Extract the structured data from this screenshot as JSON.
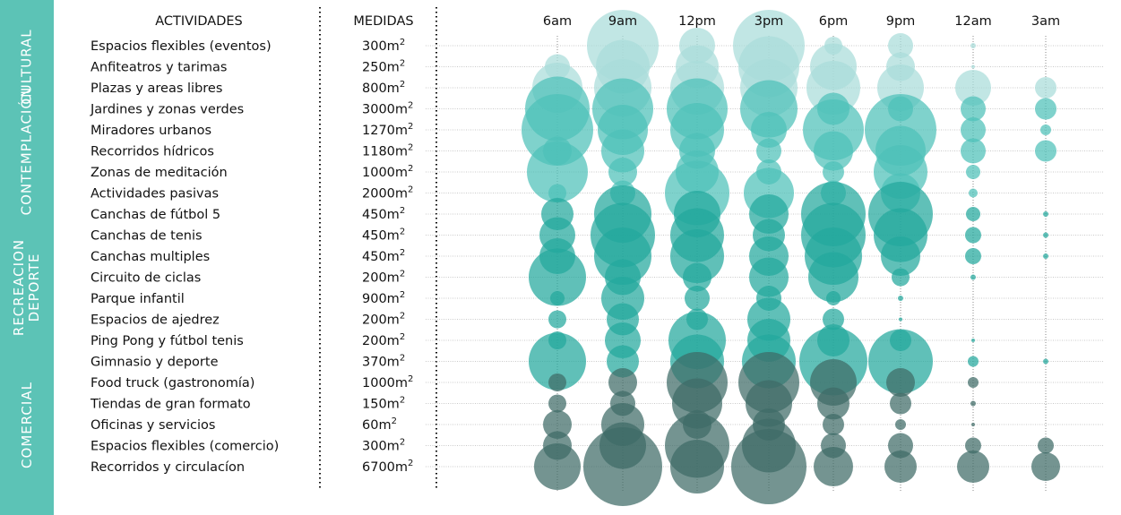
{
  "chart_data": {
    "type": "bubble",
    "headers": {
      "activities": "ACTIVIDADES",
      "measures": "MEDIDAS"
    },
    "times": [
      "6am",
      "9am",
      "12pm",
      "3pm",
      "6pm",
      "9pm",
      "12am",
      "3am"
    ],
    "categories": [
      {
        "label": "CULTURAL",
        "rows": [
          0,
          2
        ]
      },
      {
        "label": "CONTEMPLACIÓN",
        "rows": [
          3,
          7
        ]
      },
      {
        "label": "RECREACION\nDEPORTE",
        "rows": [
          8,
          15
        ]
      },
      {
        "label": "COMERCIAL",
        "rows": [
          16,
          20
        ]
      }
    ],
    "activities": [
      "Espacios flexibles (eventos)",
      "Anfiteatros y tarimas",
      "Plazas y areas libres",
      "Jardines y zonas verdes",
      "Miradores urbanos",
      "Recorridos hídricos",
      "Zonas de meditación",
      "Actividades pasivas",
      "Canchas de fútbol 5",
      "Canchas de tenis",
      "Canchas multiples",
      "Circuito de ciclas",
      "Parque infantil",
      "Espacios de ajedrez",
      "Ping Pong y fútbol tenis",
      "Gimnasio y deporte",
      "Food truck (gastronomía)",
      "Tiendas de gran formato",
      "Oficinas y servicios",
      "Espacios flexibles (comercio)",
      "Recorridos y circulacíon"
    ],
    "measures": [
      "300",
      "250",
      "800",
      "3000",
      "1270",
      "1180",
      "1000",
      "2000",
      "450",
      "450",
      "450",
      "200",
      "900",
      "200",
      "200",
      "370",
      "1000",
      "150",
      "60",
      "300",
      "6700"
    ],
    "measure_unit": "m",
    "measure_exp": "2",
    "intensity": [
      [
        0,
        40,
        20,
        40,
        10,
        14,
        3,
        0
      ],
      [
        14,
        30,
        24,
        34,
        26,
        16,
        2,
        0
      ],
      [
        28,
        32,
        30,
        32,
        30,
        26,
        20,
        12
      ],
      [
        36,
        34,
        34,
        32,
        18,
        14,
        14,
        12
      ],
      [
        40,
        28,
        30,
        20,
        34,
        40,
        14,
        6
      ],
      [
        16,
        24,
        20,
        14,
        22,
        28,
        14,
        12
      ],
      [
        34,
        16,
        24,
        14,
        12,
        30,
        8,
        0
      ],
      [
        10,
        14,
        36,
        28,
        14,
        22,
        5,
        0
      ],
      [
        18,
        32,
        26,
        22,
        36,
        36,
        8,
        3
      ],
      [
        20,
        36,
        30,
        18,
        36,
        30,
        9,
        3
      ],
      [
        20,
        32,
        30,
        22,
        32,
        22,
        9,
        3
      ],
      [
        32,
        20,
        16,
        22,
        28,
        10,
        3,
        0
      ],
      [
        8,
        24,
        14,
        14,
        8,
        3,
        0,
        0
      ],
      [
        10,
        18,
        12,
        24,
        12,
        2,
        0,
        0
      ],
      [
        10,
        20,
        32,
        24,
        18,
        12,
        2,
        0
      ],
      [
        32,
        18,
        30,
        30,
        38,
        36,
        6,
        3
      ],
      [
        10,
        16,
        34,
        34,
        26,
        16,
        6,
        0
      ],
      [
        10,
        14,
        28,
        26,
        18,
        12,
        3,
        0
      ],
      [
        16,
        24,
        16,
        18,
        12,
        6,
        2,
        0
      ],
      [
        16,
        26,
        36,
        30,
        14,
        14,
        9,
        9
      ],
      [
        26,
        44,
        30,
        42,
        22,
        18,
        18,
        16
      ]
    ],
    "colors": {
      "cultural": "#a9dcd9",
      "contemplacion": "#4ec1b9",
      "deporte": "#22a79c",
      "comercial": "#3f6b66",
      "sidebar": "#5cc3b6"
    }
  }
}
